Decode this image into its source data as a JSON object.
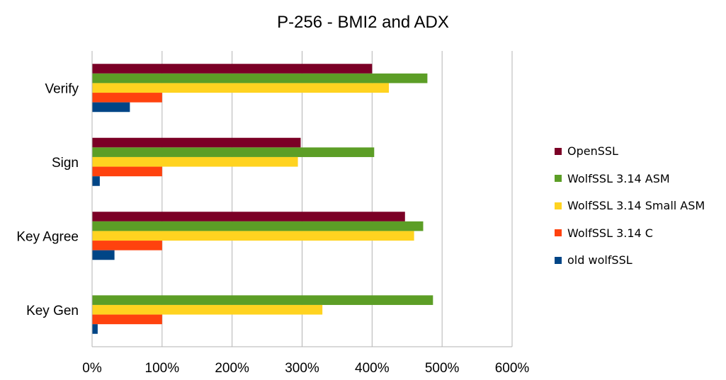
{
  "chart_data": {
    "type": "bar",
    "orientation": "horizontal",
    "title": "P-256 - BMI2 and ADX",
    "xlabel": "",
    "ylabel": "",
    "xlim": [
      0,
      600
    ],
    "x_tick_labels": [
      "0%",
      "100%",
      "200%",
      "300%",
      "400%",
      "500%",
      "600%"
    ],
    "categories": [
      "Verify",
      "Sign",
      "Key Agree",
      "Key Gen"
    ],
    "grid": "vertical",
    "legend_position": "right",
    "series": [
      {
        "name": "OpenSSL",
        "color": "#7b0026",
        "values": [
          400,
          298,
          447,
          null
        ]
      },
      {
        "name": "WolfSSL 3.14 ASM",
        "color": "#5c9e26",
        "values": [
          479,
          403,
          473,
          487
        ]
      },
      {
        "name": "WolfSSL 3.14 Small ASM",
        "color": "#ffd320",
        "values": [
          424,
          294,
          460,
          329
        ]
      },
      {
        "name": "WolfSSL 3.14 C",
        "color": "#ff420e",
        "values": [
          100,
          100,
          100,
          100
        ]
      },
      {
        "name": "old wolfSSL",
        "color": "#004586",
        "values": [
          54,
          11,
          32,
          8
        ]
      }
    ]
  }
}
